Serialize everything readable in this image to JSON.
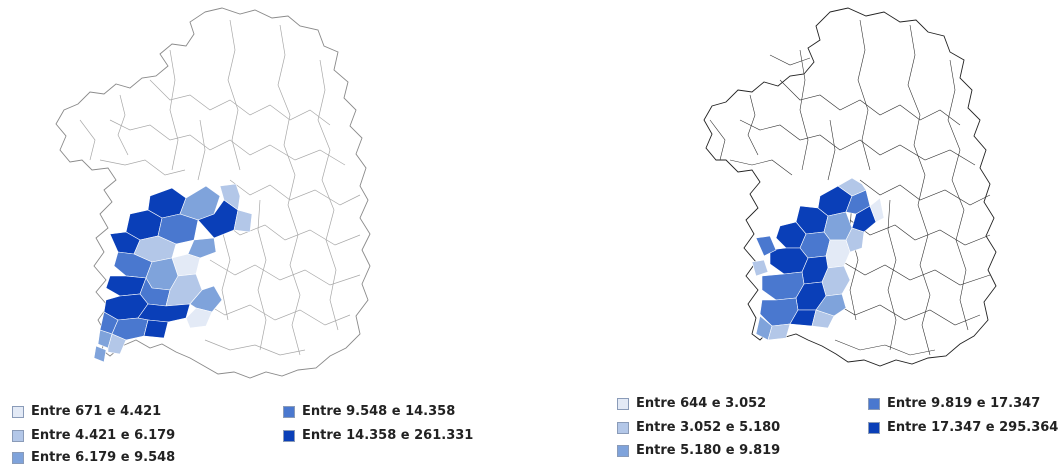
{
  "maps": [
    {
      "legend": [
        {
          "label": "Entre 671 e 4.421",
          "color": "#e3eaf6"
        },
        {
          "label": "Entre 4.421 e 6.179",
          "color": "#b3c7e8"
        },
        {
          "label": "Entre 6.179 e 9.548",
          "color": "#7fa3db"
        },
        {
          "label": "Entre 9.548 e 14.358",
          "color": "#4a78cf"
        },
        {
          "label": "Entre 14.358 e 261.331",
          "color": "#0a3fb8"
        }
      ]
    },
    {
      "legend": [
        {
          "label": "Entre 644 e 3.052",
          "color": "#e3eaf6"
        },
        {
          "label": "Entre 3.052 e 5.180",
          "color": "#b3c7e8"
        },
        {
          "label": "Entre 5.180 e 9.819",
          "color": "#7fa3db"
        },
        {
          "label": "Entre 9.819 e 17.347",
          "color": "#4a78cf"
        },
        {
          "label": "Entre 17.347 e 295.364",
          "color": "#0a3fb8"
        }
      ]
    }
  ]
}
